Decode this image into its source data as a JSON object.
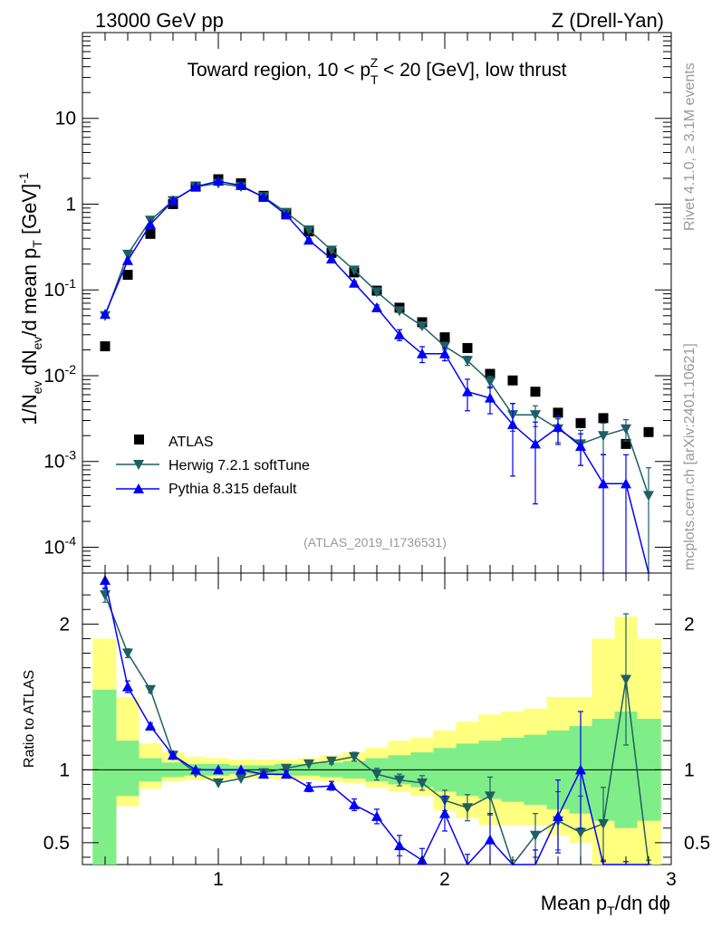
{
  "header": {
    "left": "13000 GeV pp",
    "right": "Z (Drell-Yan)"
  },
  "side_labels": {
    "rivet": "Rivet 4.1.0, ≥ 3.1M events",
    "mcplots": "mcplots.cern.ch [arXiv:2401.10621]"
  },
  "chart_data": {
    "type": "line",
    "title": "Toward region, 10 < p_T^Z < 20 [GeV], low thrust",
    "analysis_id": "(ATLAS_2019_I1736531)",
    "xlabel": "Mean p_T/dη dϕ",
    "ylabel": "1/N_ev dN_ev/d mean p_T [GeV]^-1",
    "ratio_ylabel": "Ratio to ATLAS",
    "xlim": [
      0.4,
      3.0
    ],
    "ylim": [
      5e-05,
      100
    ],
    "yscale": "log",
    "ratio_ylim": [
      0.35,
      2.35
    ],
    "x_ticks": [
      "1",
      "2",
      "3"
    ],
    "y_ticks": [
      "10^-4",
      "10^-3",
      "10^-2",
      "10^-1",
      "1",
      "10"
    ],
    "ratio_ticks": [
      "0.5",
      "1",
      "2"
    ],
    "legend_position": "bottom-left",
    "x": [
      0.5,
      0.6,
      0.7,
      0.8,
      0.9,
      1.0,
      1.1,
      1.2,
      1.3,
      1.4,
      1.5,
      1.6,
      1.7,
      1.8,
      1.9,
      2.0,
      2.1,
      2.2,
      2.3,
      2.4,
      2.5,
      2.6,
      2.7,
      2.8,
      2.9
    ],
    "series": [
      {
        "name": "ATLAS",
        "color": "#000000",
        "marker": "square",
        "values": [
          0.022,
          0.15,
          0.45,
          1.0,
          1.6,
          1.95,
          1.75,
          1.25,
          0.78,
          0.48,
          0.27,
          0.16,
          0.098,
          0.062,
          0.042,
          0.028,
          0.021,
          0.0105,
          0.0088,
          0.0065,
          0.0037,
          0.0028,
          0.0032,
          0.0016,
          0.0022
        ],
        "ratio": [
          1.0,
          1.0,
          1.0,
          1.0,
          1.0,
          1.0,
          1.0,
          1.0,
          1.0,
          1.0,
          1.0,
          1.0,
          1.0,
          1.0,
          1.0,
          1.0,
          1.0,
          1.0,
          1.0,
          1.0,
          1.0,
          1.0,
          1.0,
          1.0,
          1.0
        ]
      },
      {
        "name": "Herwig 7.2.1 softTune",
        "color": "#1e5f63",
        "marker": "triangle-down",
        "values": [
          0.05,
          0.26,
          0.65,
          1.1,
          1.6,
          1.75,
          1.6,
          1.22,
          0.8,
          0.5,
          0.29,
          0.17,
          0.095,
          0.057,
          0.038,
          0.022,
          0.015,
          0.0085,
          0.0035,
          0.0035,
          0.0024,
          0.0016,
          0.002,
          0.0024,
          0.0004
        ],
        "ratio": [
          2.2,
          1.8,
          1.55,
          1.1,
          0.98,
          0.91,
          0.94,
          0.98,
          1.01,
          1.04,
          1.06,
          1.09,
          0.97,
          0.93,
          0.91,
          0.79,
          0.74,
          0.82,
          0.28,
          0.55,
          0.65,
          0.57,
          0.63,
          1.62,
          0.18
        ],
        "ratio_err": [
          0.05,
          0.03,
          0.02,
          0.01,
          0.01,
          0.01,
          0.01,
          0.01,
          0.01,
          0.01,
          0.02,
          0.03,
          0.04,
          0.04,
          0.05,
          0.07,
          0.09,
          0.13,
          0.1,
          0.15,
          0.2,
          0.25,
          0.25,
          0.45,
          0.2
        ]
      },
      {
        "name": "Pythia 8.315 default",
        "color": "#0000ff",
        "marker": "triangle-up",
        "values": [
          0.052,
          0.22,
          0.58,
          1.1,
          1.6,
          1.85,
          1.65,
          1.2,
          0.75,
          0.38,
          0.23,
          0.12,
          0.062,
          0.03,
          0.018,
          0.018,
          0.0065,
          0.0055,
          0.0027,
          0.0016,
          0.0025,
          0.0015,
          0.00055,
          0.00055,
          2e-05
        ],
        "ratio": [
          2.3,
          1.57,
          1.3,
          1.1,
          1.0,
          1.0,
          1.0,
          0.97,
          0.97,
          0.88,
          0.89,
          0.76,
          0.68,
          0.48,
          0.38,
          0.7,
          0.3,
          0.52,
          0.2,
          0.25,
          0.68,
          1.0,
          0.17,
          0.17,
          0.01
        ],
        "ratio_err": [
          0.06,
          0.04,
          0.02,
          0.01,
          0.01,
          0.01,
          0.01,
          0.01,
          0.02,
          0.03,
          0.03,
          0.04,
          0.05,
          0.07,
          0.08,
          0.12,
          0.12,
          0.18,
          0.15,
          0.2,
          0.25,
          0.4,
          0.2,
          0.2,
          0.05
        ]
      }
    ],
    "band_yellow": [
      [
        0.55,
        1.9
      ],
      [
        0.75,
        1.5
      ],
      [
        0.87,
        1.18
      ],
      [
        0.92,
        1.12
      ],
      [
        0.93,
        1.09
      ],
      [
        0.93,
        1.08
      ],
      [
        0.94,
        1.07
      ],
      [
        0.94,
        1.07
      ],
      [
        0.93,
        1.07
      ],
      [
        0.93,
        1.08
      ],
      [
        0.92,
        1.1
      ],
      [
        0.91,
        1.12
      ],
      [
        0.88,
        1.15
      ],
      [
        0.85,
        1.2
      ],
      [
        0.82,
        1.22
      ],
      [
        0.72,
        1.27
      ],
      [
        0.67,
        1.33
      ],
      [
        0.62,
        1.38
      ],
      [
        0.62,
        1.4
      ],
      [
        0.62,
        1.42
      ],
      [
        0.55,
        1.5
      ],
      [
        0.5,
        1.5
      ],
      [
        0.3,
        1.9
      ],
      [
        0.3,
        2.05
      ],
      [
        0.3,
        1.9
      ]
    ],
    "band_green": [
      [
        0.35,
        1.55
      ],
      [
        0.82,
        1.2
      ],
      [
        0.92,
        1.08
      ],
      [
        0.95,
        1.05
      ],
      [
        0.96,
        1.04
      ],
      [
        0.96,
        1.04
      ],
      [
        0.97,
        1.03
      ],
      [
        0.97,
        1.03
      ],
      [
        0.96,
        1.04
      ],
      [
        0.96,
        1.04
      ],
      [
        0.95,
        1.05
      ],
      [
        0.94,
        1.06
      ],
      [
        0.92,
        1.08
      ],
      [
        0.9,
        1.1
      ],
      [
        0.88,
        1.12
      ],
      [
        0.85,
        1.15
      ],
      [
        0.82,
        1.18
      ],
      [
        0.8,
        1.2
      ],
      [
        0.78,
        1.22
      ],
      [
        0.76,
        1.24
      ],
      [
        0.73,
        1.27
      ],
      [
        0.7,
        1.3
      ],
      [
        0.65,
        1.35
      ],
      [
        0.6,
        1.4
      ],
      [
        0.65,
        1.35
      ]
    ]
  }
}
